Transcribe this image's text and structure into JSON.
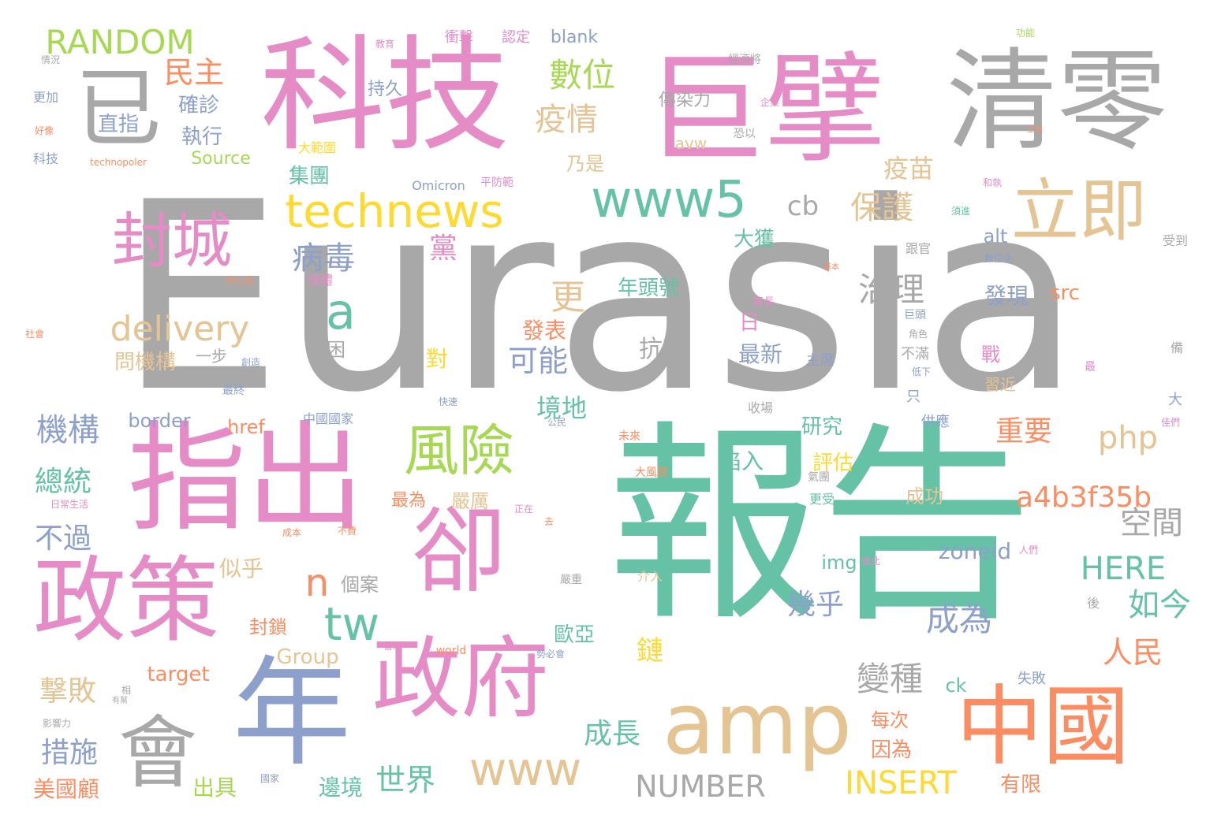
{
  "palette": {
    "gray": "#a8a8a8",
    "pink": "#e58bc5",
    "teal": "#66c2a5",
    "orange": "#fc8d62",
    "blue": "#8da0cb",
    "green": "#a6d854",
    "yellow": "#ffd92f",
    "tan": "#e5c494",
    "background": "#ffffff"
  },
  "words": [
    "Eurasia",
    "報告",
    "科技",
    "巨擘",
    "清零",
    "指出",
    "政策",
    "卻",
    "年",
    "政府",
    "會",
    "amp",
    "中國",
    "已",
    "立即",
    "technews",
    "www5",
    "封城",
    "風險",
    "www",
    "delivery",
    "php",
    "a4b3f35b",
    "RANDOM",
    "民主",
    "數位",
    "疫情",
    "病毒",
    "黨",
    "治理",
    "保護",
    "疫苗",
    "cb",
    "a",
    "更",
    "可能",
    "機構",
    "總統",
    "不過",
    "tw",
    "n",
    "HERE",
    "空間",
    "成為",
    "如今",
    "人民",
    "重要",
    "境地",
    "幾乎",
    "變種",
    "成長",
    "世界",
    "NUMBER",
    "INSERT",
    "措施",
    "撃敗",
    "美國顧",
    "出具",
    "邊境",
    "因為",
    "每次",
    "有限",
    "研究",
    "評估",
    "陷入",
    "成功",
    "嚴厲",
    "最為",
    "zoneid",
    "img",
    "個案",
    "似乎",
    "封鎖",
    "歐亞",
    "鏈",
    "Group",
    "target",
    "ck",
    "抗高",
    "最新",
    "日",
    "發表",
    "對",
    "年頭號",
    "發現",
    "src",
    "alt",
    "大獲",
    "乃是",
    "集團",
    "直指",
    "確診",
    "執行",
    "持久",
    "傳染力",
    "avw",
    "Source",
    "大範圍",
    "Omicron",
    "平防範",
    "blank",
    "衝擊",
    "認定",
    "教育",
    "經濟將",
    "technopoler",
    "問機構",
    "艱困",
    "一步",
    "border",
    "href",
    "中國國家",
    "主席",
    "習近",
    "供應",
    "只",
    "戰",
    "收場",
    "介入",
    "嚴重",
    "world",
    "管制",
    "大風險",
    "正在",
    "人們",
    "失敗",
    "後",
    "更受",
    "氣團",
    "更加",
    "科技",
    "情況",
    "好像",
    "功能",
    "企業",
    "恐以",
    "工具",
    "和執",
    "須進",
    "受到",
    "跟官",
    "數位化",
    "基本",
    "專長",
    "巨頭",
    "角色",
    "不滿",
    "低下",
    "最",
    "備",
    "大",
    "佳們",
    "國家",
    "相",
    "有幫",
    "影響力",
    "社會",
    "中心化",
    "媒體",
    "成本",
    "不費",
    "日常生活",
    "彼此",
    "去",
    "勢必會",
    "最終",
    "創造",
    "快速",
    "公民",
    "未來"
  ]
}
